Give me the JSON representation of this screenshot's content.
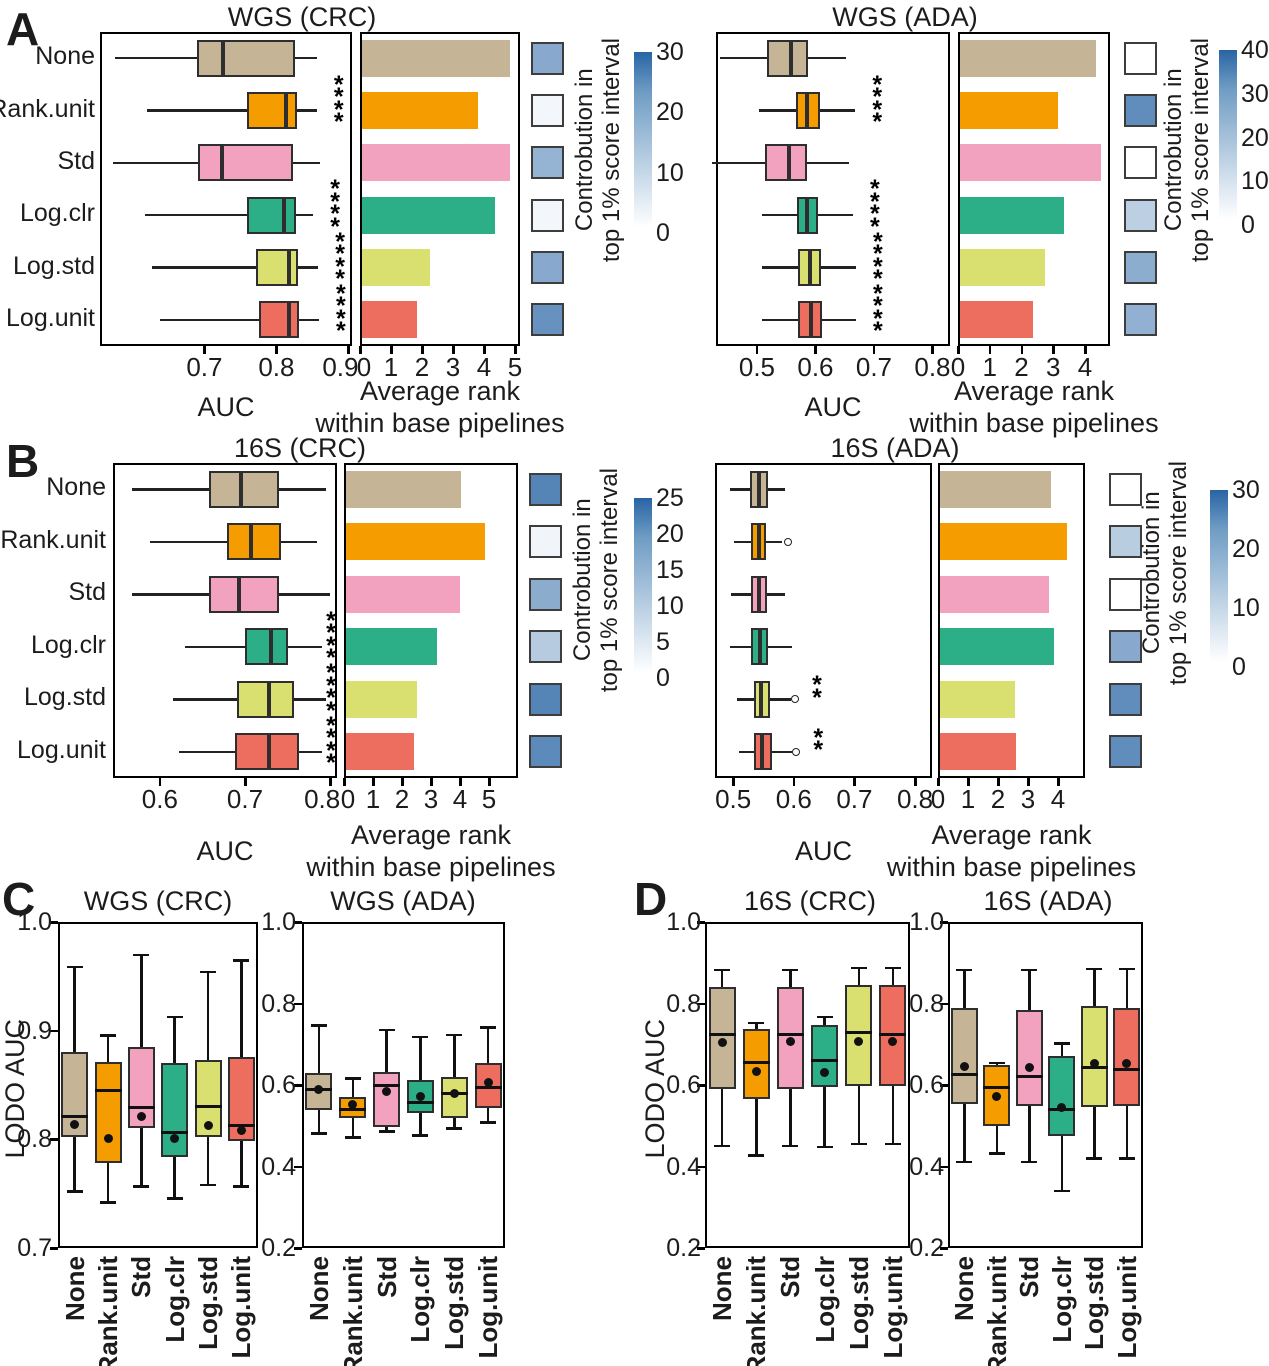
{
  "figure": {
    "panel_labels": [
      "A",
      "B",
      "C",
      "D"
    ],
    "categories": [
      "None",
      "Rank.unit",
      "Std",
      "Log.clr",
      "Log.std",
      "Log.unit"
    ],
    "palette": [
      "#C5B496",
      "#F59D00",
      "#F2A2BF",
      "#2CAE87",
      "#D9E06F",
      "#ED6D5F"
    ],
    "contrib_high_color": "#2864A4",
    "box_xlabel": "AUC",
    "bar_xlabel_line1": "Average rank",
    "bar_xlabel_line2": "within base pipelines",
    "contrib_label_line1": "Controbution in",
    "contrib_label_line2": "top 1% score interval",
    "lodo_ylabel": "LODO AUC"
  },
  "chart_data": [
    {
      "id": "A-left",
      "type": "box+bar",
      "orientation": "horizontal",
      "title": "WGS (CRC)",
      "box": {
        "xlabel": "AUC",
        "xlim": [
          0.555,
          0.905
        ],
        "xticks": [
          0.7,
          0.8,
          0.9
        ],
        "xtick_labels": [
          "0.7",
          "0.8",
          "0.9"
        ],
        "stats": [
          {
            "lo": 0.576,
            "q1": 0.69,
            "med": 0.726,
            "q3": 0.826,
            "hi": 0.856
          },
          {
            "lo": 0.62,
            "q1": 0.759,
            "med": 0.813,
            "q3": 0.829,
            "hi": 0.856
          },
          {
            "lo": 0.573,
            "q1": 0.691,
            "med": 0.724,
            "q3": 0.823,
            "hi": 0.86
          },
          {
            "lo": 0.617,
            "q1": 0.759,
            "med": 0.81,
            "q3": 0.827,
            "hi": 0.851
          },
          {
            "lo": 0.627,
            "q1": 0.772,
            "med": 0.818,
            "q3": 0.83,
            "hi": 0.858
          },
          {
            "lo": 0.638,
            "q1": 0.776,
            "med": 0.818,
            "q3": 0.831,
            "hi": 0.859
          }
        ],
        "outliers": [
          [],
          [],
          [],
          [],
          [],
          []
        ]
      },
      "significance": [
        "",
        "****",
        "",
        "****",
        "****",
        "****"
      ],
      "bar": {
        "xlabel": "Average rank within base pipelines",
        "xlim": [
          0,
          5.2
        ],
        "xticks": [
          0,
          1,
          2,
          3,
          4,
          5
        ],
        "values": [
          4.85,
          3.8,
          4.85,
          4.35,
          2.25,
          1.85
        ]
      },
      "contrib": {
        "label": "Controbution in top 1% score interval",
        "scale_max": 30,
        "scale_ticks": [
          0,
          10,
          20,
          30
        ],
        "values": [
          15,
          1,
          13,
          1,
          15,
          20
        ]
      }
    },
    {
      "id": "A-right",
      "type": "box+bar",
      "orientation": "horizontal",
      "title": "WGS (ADA)",
      "box": {
        "xlabel": "AUC",
        "xlim": [
          0.43,
          0.83
        ],
        "xticks": [
          0.5,
          0.6,
          0.7,
          0.8
        ],
        "xtick_labels": [
          "0.5",
          "0.6",
          "0.7",
          "0.8"
        ],
        "stats": [
          {
            "lo": 0.436,
            "q1": 0.517,
            "med": 0.558,
            "q3": 0.588,
            "hi": 0.653
          },
          {
            "lo": 0.503,
            "q1": 0.566,
            "med": 0.585,
            "q3": 0.608,
            "hi": 0.668
          },
          {
            "lo": 0.424,
            "q1": 0.514,
            "med": 0.554,
            "q3": 0.585,
            "hi": 0.658
          },
          {
            "lo": 0.509,
            "q1": 0.568,
            "med": 0.586,
            "q3": 0.605,
            "hi": 0.664
          },
          {
            "lo": 0.509,
            "q1": 0.57,
            "med": 0.59,
            "q3": 0.61,
            "hi": 0.669
          },
          {
            "lo": 0.509,
            "q1": 0.571,
            "med": 0.592,
            "q3": 0.612,
            "hi": 0.669
          }
        ],
        "outliers": [
          [],
          [],
          [],
          [],
          [],
          []
        ]
      },
      "significance": [
        "",
        "****",
        "",
        "****",
        "****",
        "****"
      ],
      "bar": {
        "xlabel": "Average rank within base pipelines",
        "xlim": [
          0,
          4.72
        ],
        "xticks": [
          0,
          1,
          2,
          3,
          4
        ],
        "values": [
          4.35,
          3.15,
          4.5,
          3.35,
          2.75,
          2.35
        ]
      },
      "contrib": {
        "label": "Controbution in top 1% score interval",
        "scale_max": 40,
        "scale_ticks": [
          0,
          10,
          20,
          30,
          40
        ],
        "values": [
          0,
          28,
          0,
          10,
          19,
          18
        ]
      }
    },
    {
      "id": "B-left",
      "type": "box+bar",
      "orientation": "horizontal",
      "title": "16S (CRC)",
      "box": {
        "xlabel": "AUC",
        "xlim": [
          0.545,
          0.808
        ],
        "xticks": [
          0.6,
          0.7,
          0.8
        ],
        "xtick_labels": [
          "0.6",
          "0.7",
          "0.8"
        ],
        "stats": [
          {
            "lo": 0.567,
            "q1": 0.658,
            "med": 0.695,
            "q3": 0.74,
            "hi": 0.795
          },
          {
            "lo": 0.588,
            "q1": 0.679,
            "med": 0.707,
            "q3": 0.742,
            "hi": 0.785
          },
          {
            "lo": 0.567,
            "q1": 0.658,
            "med": 0.693,
            "q3": 0.74,
            "hi": 0.8
          },
          {
            "lo": 0.63,
            "q1": 0.7,
            "med": 0.73,
            "q3": 0.751,
            "hi": 0.79
          },
          {
            "lo": 0.616,
            "q1": 0.691,
            "med": 0.728,
            "q3": 0.758,
            "hi": 0.795
          },
          {
            "lo": 0.623,
            "q1": 0.688,
            "med": 0.728,
            "q3": 0.763,
            "hi": 0.79
          }
        ],
        "outliers": [
          [],
          [],
          [],
          [],
          [],
          []
        ]
      },
      "significance": [
        "",
        "",
        "",
        "****",
        "****",
        "****"
      ],
      "bar": {
        "xlabel": "Average rank within base pipelines",
        "xlim": [
          0,
          5.86
        ],
        "xticks": [
          0,
          1,
          2,
          3,
          4,
          5
        ],
        "values": [
          4.05,
          4.85,
          4.0,
          3.2,
          2.5,
          2.4
        ]
      },
      "contrib": {
        "label": "Controbution in top 1% score interval",
        "scale_max": 25,
        "scale_ticks": [
          0,
          5,
          10,
          15,
          20,
          25
        ],
        "values": [
          19,
          1,
          12,
          7,
          19,
          18
        ]
      }
    },
    {
      "id": "B-right",
      "type": "box+bar",
      "orientation": "horizontal",
      "title": "16S (ADA)",
      "box": {
        "xlabel": "AUC",
        "xlim": [
          0.47,
          0.828
        ],
        "xticks": [
          0.5,
          0.6,
          0.7,
          0.8
        ],
        "xtick_labels": [
          "0.5",
          "0.6",
          "0.7",
          "0.8"
        ],
        "stats": [
          {
            "lo": 0.495,
            "q1": 0.527,
            "med": 0.542,
            "q3": 0.558,
            "hi": 0.585
          },
          {
            "lo": 0.502,
            "q1": 0.529,
            "med": 0.542,
            "q3": 0.554,
            "hi": 0.58
          },
          {
            "lo": 0.497,
            "q1": 0.529,
            "med": 0.542,
            "q3": 0.556,
            "hi": 0.586
          },
          {
            "lo": 0.495,
            "q1": 0.53,
            "med": 0.545,
            "q3": 0.558,
            "hi": 0.597
          },
          {
            "lo": 0.506,
            "q1": 0.535,
            "med": 0.546,
            "q3": 0.561,
            "hi": 0.596
          },
          {
            "lo": 0.51,
            "q1": 0.534,
            "med": 0.548,
            "q3": 0.564,
            "hi": 0.597
          }
        ],
        "outliers": [
          [],
          [
            0.59
          ],
          [],
          [],
          [
            0.602
          ],
          [
            0.604
          ]
        ]
      },
      "significance": [
        "",
        "",
        "",
        "",
        "**",
        "**"
      ],
      "bar": {
        "xlabel": "Average rank within base pipelines",
        "xlim": [
          0,
          4.5
        ],
        "xticks": [
          0,
          1,
          2,
          3,
          4
        ],
        "values": [
          3.75,
          4.3,
          3.7,
          3.85,
          2.55,
          2.6
        ]
      },
      "contrib": {
        "label": "Controbution in top 1% score interval",
        "scale_max": 30,
        "scale_ticks": [
          0,
          10,
          20,
          30
        ],
        "values": [
          0,
          8,
          0,
          15,
          21,
          21
        ]
      }
    },
    {
      "id": "C-left",
      "type": "box",
      "orientation": "vertical",
      "title": "WGS (CRC)",
      "ylabel": "LODO AUC",
      "ylim": [
        0.7,
        1.0
      ],
      "yticks": [
        0.7,
        0.8,
        0.9,
        1.0
      ],
      "stats": [
        {
          "lo": 0.752,
          "q1": 0.802,
          "med": 0.821,
          "q3": 0.88,
          "hi": 0.959,
          "mean": 0.814
        },
        {
          "lo": 0.742,
          "q1": 0.778,
          "med": 0.845,
          "q3": 0.871,
          "hi": 0.896,
          "mean": 0.801
        },
        {
          "lo": 0.757,
          "q1": 0.81,
          "med": 0.829,
          "q3": 0.885,
          "hi": 0.97,
          "mean": 0.821
        },
        {
          "lo": 0.746,
          "q1": 0.784,
          "med": 0.806,
          "q3": 0.87,
          "hi": 0.913,
          "mean": 0.801
        },
        {
          "lo": 0.758,
          "q1": 0.802,
          "med": 0.83,
          "q3": 0.873,
          "hi": 0.954,
          "mean": 0.813
        },
        {
          "lo": 0.757,
          "q1": 0.798,
          "med": 0.813,
          "q3": 0.876,
          "hi": 0.965,
          "mean": 0.808
        }
      ]
    },
    {
      "id": "C-right",
      "type": "box",
      "orientation": "vertical",
      "title": "WGS (ADA)",
      "ylabel": "LODO AUC",
      "ylim": [
        0.2,
        1.0
      ],
      "yticks": [
        0.2,
        0.4,
        0.6,
        0.8,
        1.0
      ],
      "stats": [
        {
          "lo": 0.482,
          "q1": 0.539,
          "med": 0.588,
          "q3": 0.629,
          "hi": 0.747,
          "mean": 0.588
        },
        {
          "lo": 0.472,
          "q1": 0.519,
          "med": 0.539,
          "q3": 0.571,
          "hi": 0.617,
          "mean": 0.551
        },
        {
          "lo": 0.487,
          "q1": 0.497,
          "med": 0.6,
          "q3": 0.632,
          "hi": 0.735,
          "mean": 0.583
        },
        {
          "lo": 0.477,
          "q1": 0.532,
          "med": 0.556,
          "q3": 0.612,
          "hi": 0.718,
          "mean": 0.571
        },
        {
          "lo": 0.494,
          "q1": 0.519,
          "med": 0.58,
          "q3": 0.62,
          "hi": 0.723,
          "mean": 0.58
        },
        {
          "lo": 0.509,
          "q1": 0.543,
          "med": 0.593,
          "q3": 0.653,
          "hi": 0.742,
          "mean": 0.605
        }
      ]
    },
    {
      "id": "D-left",
      "type": "box",
      "orientation": "vertical",
      "title": "16S (CRC)",
      "ylabel": "LODO AUC",
      "ylim": [
        0.2,
        1.0
      ],
      "yticks": [
        0.2,
        0.4,
        0.6,
        0.8,
        1.0
      ],
      "stats": [
        {
          "lo": 0.451,
          "q1": 0.59,
          "med": 0.724,
          "q3": 0.841,
          "hi": 0.883,
          "mean": 0.705
        },
        {
          "lo": 0.427,
          "q1": 0.566,
          "med": 0.656,
          "q3": 0.737,
          "hi": 0.753,
          "mean": 0.634
        },
        {
          "lo": 0.451,
          "q1": 0.59,
          "med": 0.724,
          "q3": 0.841,
          "hi": 0.883,
          "mean": 0.707
        },
        {
          "lo": 0.448,
          "q1": 0.595,
          "med": 0.659,
          "q3": 0.748,
          "hi": 0.768,
          "mean": 0.631
        },
        {
          "lo": 0.456,
          "q1": 0.598,
          "med": 0.729,
          "q3": 0.846,
          "hi": 0.888,
          "mean": 0.707
        },
        {
          "lo": 0.456,
          "q1": 0.598,
          "med": 0.724,
          "q3": 0.846,
          "hi": 0.888,
          "mean": 0.707
        }
      ]
    },
    {
      "id": "D-right",
      "type": "box",
      "orientation": "vertical",
      "title": "16S (ADA)",
      "ylabel": "LODO AUC",
      "ylim": [
        0.2,
        1.0
      ],
      "yticks": [
        0.2,
        0.4,
        0.6,
        0.8,
        1.0
      ],
      "stats": [
        {
          "lo": 0.412,
          "q1": 0.554,
          "med": 0.625,
          "q3": 0.79,
          "hi": 0.883,
          "mean": 0.646
        },
        {
          "lo": 0.432,
          "q1": 0.5,
          "med": 0.595,
          "q3": 0.65,
          "hi": 0.655,
          "mean": 0.572
        },
        {
          "lo": 0.412,
          "q1": 0.549,
          "med": 0.622,
          "q3": 0.785,
          "hi": 0.883,
          "mean": 0.644
        },
        {
          "lo": 0.34,
          "q1": 0.475,
          "med": 0.54,
          "q3": 0.672,
          "hi": 0.703,
          "mean": 0.546
        },
        {
          "lo": 0.42,
          "q1": 0.546,
          "med": 0.642,
          "q3": 0.793,
          "hi": 0.885,
          "mean": 0.653
        },
        {
          "lo": 0.42,
          "q1": 0.549,
          "med": 0.638,
          "q3": 0.79,
          "hi": 0.885,
          "mean": 0.653
        }
      ]
    }
  ]
}
